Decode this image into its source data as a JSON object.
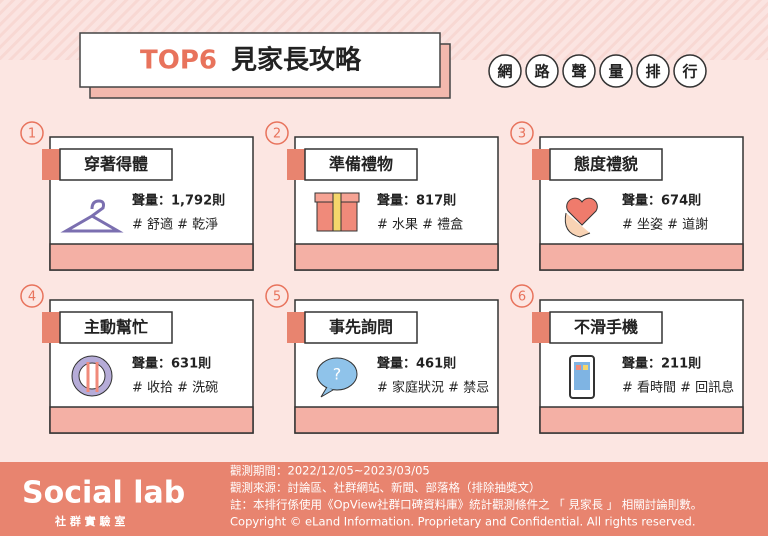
{
  "header": {
    "title_highlight": "TOP6",
    "title": "見家長攻略",
    "badges": [
      "網",
      "路",
      "聲",
      "量",
      "排",
      "行"
    ]
  },
  "items": [
    {
      "rank": 1,
      "title": "穿著得體",
      "volume": "聲量：1,792則",
      "tags": "# 舒適 # 乾淨"
    },
    {
      "rank": 2,
      "title": "準備禮物",
      "volume": "聲量：817則",
      "tags": "# 水果 # 禮盒"
    },
    {
      "rank": 3,
      "title": "態度禮貌",
      "volume": "聲量：674則",
      "tags": "# 坐姿 # 道謝"
    },
    {
      "rank": 4,
      "title": "主動幫忙",
      "volume": "聲量：631則",
      "tags": "# 收拾 # 洗碗"
    },
    {
      "rank": 5,
      "title": "事先詢問",
      "volume": "聲量：461則",
      "tags": "# 家庭狀況 # 禁忌"
    },
    {
      "rank": 6,
      "title": "不滑手機",
      "volume": "聲量：211則",
      "tags": "# 看時間 # 回訊息"
    }
  ],
  "footer": {
    "logo": "Social lab",
    "logo_sub": "社 群 實 驗 室",
    "notes": [
      "觀測期間：2022/12/05~2023/03/05",
      "觀測來源：討論區、社群網站、新聞、部落格（排除抽獎文）",
      "註：本排行係使用《OpView社群口碑資料庫》統計觀測條件之 「 見家長 」 相關討論則數。",
      "Copyright © eLand Information. Proprietary and Confidential. All rights reserved."
    ]
  }
}
